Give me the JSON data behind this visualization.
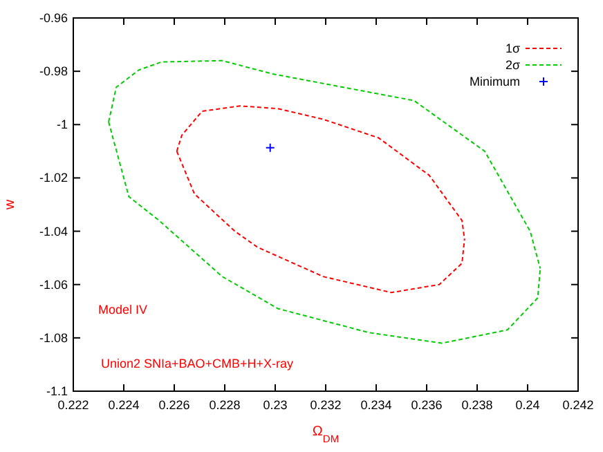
{
  "chart_data": {
    "type": "line",
    "xlabel": "Ω$_{DM}$",
    "ylabel": "w",
    "xlim": [
      0.222,
      0.242
    ],
    "ylim": [
      -1.1,
      -0.96
    ],
    "xticks": [
      0.222,
      0.224,
      0.226,
      0.228,
      0.23,
      0.232,
      0.234,
      0.236,
      0.238,
      0.24,
      0.242
    ],
    "yticks": [
      -1.1,
      -1.08,
      -1.06,
      -1.04,
      -1.02,
      -1,
      -0.98,
      -0.96
    ],
    "grid": false,
    "legend": "top right",
    "line_style": "dashed",
    "annotations": [
      "Model IV",
      "Union2 SNIa+BAO+CMB+H+X-ray"
    ],
    "series": [
      {
        "name": "1σ",
        "color": "#ff0000",
        "x": [
          0.2261,
          0.2263,
          0.2271,
          0.2286,
          0.2301,
          0.2319,
          0.2341,
          0.2361,
          0.2374,
          0.2375,
          null,
          0.2261,
          0.2268,
          0.2284,
          0.2293,
          0.2319,
          0.2346,
          0.2365,
          0.2374,
          0.2375
        ],
        "values": [
          -1.01,
          -1.004,
          -0.995,
          -0.993,
          -0.994,
          -0.998,
          -1.005,
          -1.019,
          -1.036,
          -1.043,
          null,
          -1.01,
          -1.026,
          -1.04,
          -1.046,
          -1.057,
          -1.063,
          -1.06,
          -1.052,
          -1.043
        ]
      },
      {
        "name": "2σ",
        "color": "#00cc00",
        "x": [
          0.2234,
          0.2237,
          0.2246,
          0.2255,
          0.2279,
          0.2299,
          0.2355,
          0.2383,
          0.2401,
          0.2405,
          null,
          0.2234,
          0.2242,
          0.2254,
          0.2279,
          0.2301,
          0.2337,
          0.2366,
          0.2392,
          0.2404,
          0.2405
        ],
        "values": [
          -0.999,
          -0.986,
          -0.9795,
          -0.9765,
          -0.976,
          -0.981,
          -0.991,
          -1.01,
          -1.04,
          -1.054,
          null,
          -0.999,
          -1.027,
          -1.036,
          -1.057,
          -1.069,
          -1.078,
          -1.082,
          -1.077,
          -1.065,
          -1.054
        ]
      },
      {
        "name": "Minimum",
        "type": "scatter",
        "color": "#0000ff",
        "marker": "cross",
        "x": [
          0.2298
        ],
        "values": [
          -1.0087
        ]
      }
    ]
  }
}
